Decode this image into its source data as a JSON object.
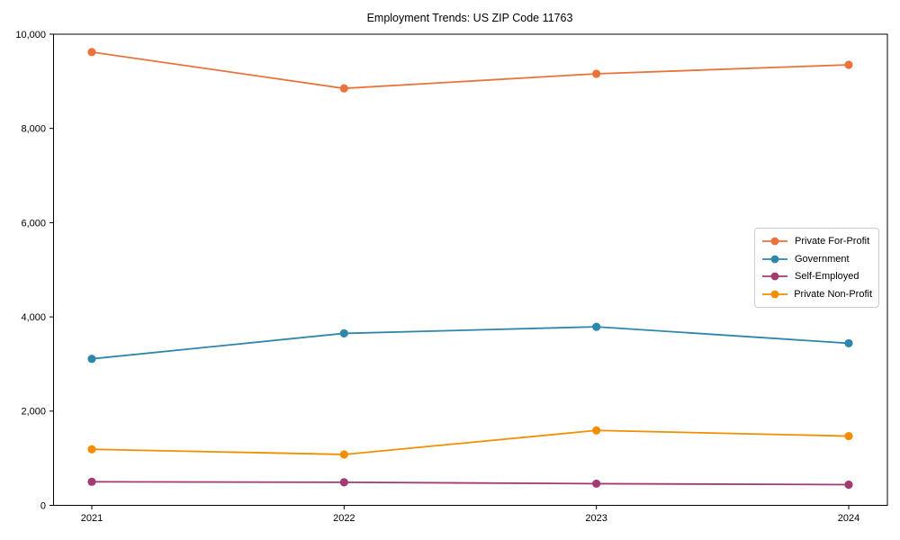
{
  "chart_data": {
    "type": "line",
    "title": "Employment Trends: US ZIP Code 11763",
    "x": [
      2021,
      2022,
      2023,
      2024
    ],
    "x_tick_labels": [
      "2021",
      "2022",
      "2023",
      "2024"
    ],
    "series": [
      {
        "name": "Private For-Profit",
        "color": "#E8743B",
        "values": [
          9620,
          8850,
          9160,
          9350
        ]
      },
      {
        "name": "Government",
        "color": "#2E86AB",
        "values": [
          3110,
          3650,
          3790,
          3440
        ]
      },
      {
        "name": "Self-Employed",
        "color": "#A23B72",
        "values": [
          500,
          490,
          460,
          440
        ]
      },
      {
        "name": "Private Non-Profit",
        "color": "#F18F01",
        "values": [
          1190,
          1080,
          1590,
          1470
        ]
      }
    ],
    "ylim": [
      0,
      10000
    ],
    "yticks": [
      0,
      2000,
      4000,
      6000,
      8000,
      10000
    ],
    "ytick_labels": [
      "0",
      "2,000",
      "4,000",
      "6,000",
      "8,000",
      "10,000"
    ],
    "grid": false,
    "legend_position": "center-right",
    "marker": "circle",
    "axis_color": "#000000",
    "background_color": "#ffffff"
  }
}
